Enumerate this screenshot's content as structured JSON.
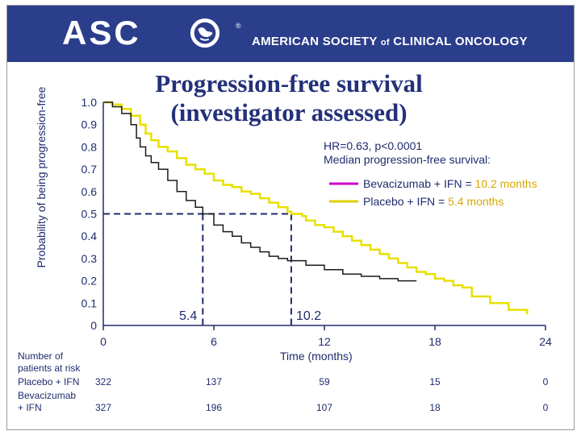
{
  "header": {
    "logo_text": "ASC",
    "registered": "®",
    "org_part1": "AMERICAN SOCIETY",
    "org_of": "of",
    "org_part2": "CLINICAL ONCOLOGY",
    "bg_color": "#2b3e8c"
  },
  "title_line1": "Progression-free survival",
  "title_line2": "(investigator assessed)",
  "stats": {
    "hr_line": "HR=0.63, p<0.0001",
    "median_heading": "Median progression-free survival:"
  },
  "legend": [
    {
      "label": "Bevacizumab + IFN = ",
      "value": "10.2 months",
      "color": "#cc00cc"
    },
    {
      "label": "Placebo + IFN = ",
      "value": "5.4 months",
      "color": "#e0d000"
    }
  ],
  "chart_data": {
    "type": "line",
    "title": "Progression-free survival (investigator assessed)",
    "xlabel": "Time (months)",
    "ylabel": "Probability of being progression-free",
    "xlim": [
      0,
      24
    ],
    "ylim": [
      0,
      1.0
    ],
    "x_ticks": [
      "0",
      "6",
      "12",
      "18",
      "24"
    ],
    "y_ticks": [
      "0",
      "0.1",
      "0.2",
      "0.3",
      "0.4",
      "0.5",
      "0.6",
      "0.7",
      "0.8",
      "0.9",
      "1.0"
    ],
    "median_labels": [
      "5.4",
      "10.2"
    ],
    "medians": [
      {
        "x": 5.4,
        "y": 0.5
      },
      {
        "x": 10.2,
        "y": 0.5
      }
    ],
    "series": [
      {
        "name": "Bevacizumab + IFN",
        "color": "#e8e000",
        "points": [
          [
            0,
            1.0
          ],
          [
            0.5,
            0.99
          ],
          [
            1,
            0.97
          ],
          [
            1.5,
            0.94
          ],
          [
            2,
            0.9
          ],
          [
            2.3,
            0.86
          ],
          [
            2.6,
            0.83
          ],
          [
            3,
            0.8
          ],
          [
            3.5,
            0.78
          ],
          [
            4,
            0.75
          ],
          [
            4.5,
            0.72
          ],
          [
            5,
            0.7
          ],
          [
            5.5,
            0.68
          ],
          [
            6,
            0.65
          ],
          [
            6.5,
            0.63
          ],
          [
            7,
            0.62
          ],
          [
            7.5,
            0.6
          ],
          [
            8,
            0.59
          ],
          [
            8.5,
            0.57
          ],
          [
            9,
            0.55
          ],
          [
            9.5,
            0.53
          ],
          [
            10,
            0.51
          ],
          [
            10.2,
            0.5
          ],
          [
            10.8,
            0.49
          ],
          [
            11,
            0.47
          ],
          [
            11.5,
            0.45
          ],
          [
            12,
            0.44
          ],
          [
            12.5,
            0.42
          ],
          [
            13,
            0.4
          ],
          [
            13.5,
            0.38
          ],
          [
            14,
            0.36
          ],
          [
            14.5,
            0.34
          ],
          [
            15,
            0.32
          ],
          [
            15.5,
            0.3
          ],
          [
            16,
            0.28
          ],
          [
            16.5,
            0.26
          ],
          [
            17,
            0.24
          ],
          [
            17.5,
            0.23
          ],
          [
            18,
            0.21
          ],
          [
            18.5,
            0.2
          ],
          [
            19,
            0.18
          ],
          [
            19.5,
            0.17
          ],
          [
            20,
            0.13
          ],
          [
            21,
            0.1
          ],
          [
            22,
            0.07
          ],
          [
            23,
            0.05
          ]
        ]
      },
      {
        "name": "Placebo + IFN",
        "color": "#1a1a1a",
        "points": [
          [
            0,
            1.0
          ],
          [
            0.5,
            0.98
          ],
          [
            1,
            0.95
          ],
          [
            1.5,
            0.9
          ],
          [
            1.8,
            0.84
          ],
          [
            2,
            0.8
          ],
          [
            2.3,
            0.76
          ],
          [
            2.6,
            0.73
          ],
          [
            3,
            0.7
          ],
          [
            3.5,
            0.65
          ],
          [
            4,
            0.6
          ],
          [
            4.5,
            0.56
          ],
          [
            5,
            0.53
          ],
          [
            5.4,
            0.5
          ],
          [
            6,
            0.45
          ],
          [
            6.5,
            0.42
          ],
          [
            7,
            0.4
          ],
          [
            7.5,
            0.37
          ],
          [
            8,
            0.35
          ],
          [
            8.5,
            0.33
          ],
          [
            9,
            0.31
          ],
          [
            9.5,
            0.3
          ],
          [
            10,
            0.29
          ],
          [
            11,
            0.27
          ],
          [
            12,
            0.25
          ],
          [
            13,
            0.23
          ],
          [
            14,
            0.22
          ],
          [
            15,
            0.21
          ],
          [
            16,
            0.2
          ],
          [
            17,
            0.2
          ]
        ]
      }
    ]
  },
  "risk_table": {
    "header_line1": "Number of",
    "header_line2": "patients at risk",
    "rows": [
      {
        "label_line1": "Placebo + IFN",
        "label_line2": "",
        "values": [
          "322",
          "137",
          "59",
          "15",
          "0"
        ]
      },
      {
        "label_line1": "Bevacizumab",
        "label_line2": "+ IFN",
        "values": [
          "327",
          "196",
          "107",
          "18",
          "0"
        ]
      }
    ]
  }
}
